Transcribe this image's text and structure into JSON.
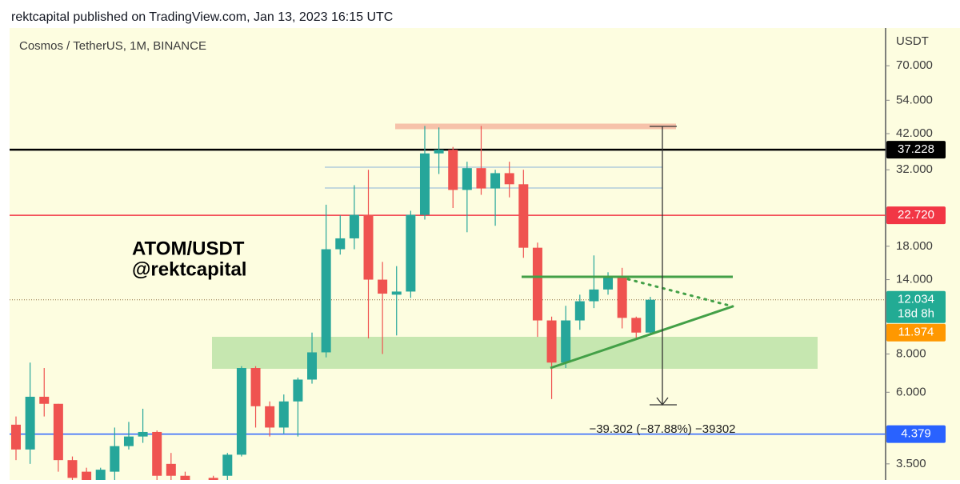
{
  "header": "rektcapital published on TradingView.com, Jan 13, 2023 16:15 UTC",
  "chart_data": {
    "type": "candlestick",
    "title": "Cosmos / TetherUS, 1M, BINANCE",
    "y_axis_label": "USDT",
    "log_scale": true,
    "ylim": [
      3.1,
      93
    ],
    "yticks": [
      {
        "value": 70,
        "label": "70.000"
      },
      {
        "value": 54,
        "label": "54.000"
      },
      {
        "value": 42,
        "label": "42.000"
      },
      {
        "value": 32,
        "label": "32.000"
      },
      {
        "value": 18,
        "label": "18.000"
      },
      {
        "value": 14,
        "label": "14.000"
      },
      {
        "value": 8,
        "label": "8.000"
      },
      {
        "value": 6,
        "label": "6.000"
      },
      {
        "value": 3.5,
        "label": "3.500"
      }
    ],
    "up_color": "#26a69a",
    "down_color": "#ef5350",
    "open": [
      4.7,
      3.9,
      5.8,
      5.5,
      3.6,
      3.3,
      3.1,
      3.3,
      4.0,
      4.3,
      4.45,
      3.5,
      3.2,
      null,
      3.15,
      3.2,
      3.75,
      7.2,
      5.4,
      4.6,
      5.6,
      6.6,
      8.1,
      17.6,
      19.1,
      22.8,
      14.0,
      12.5,
      12.8,
      22.8,
      36.2,
      37.2,
      27.5,
      32.4,
      27.8,
      31.2,
      28.7,
      17.8,
      10.3,
      7.5,
      10.3,
      11.9,
      13.0,
      14.2,
      10.5,
      9.4
    ],
    "high": [
      5.0,
      7.5,
      7.2,
      5.5,
      3.7,
      3.4,
      3.4,
      4.6,
      4.8,
      5.3,
      4.5,
      3.8,
      3.3,
      null,
      3.2,
      3.8,
      7.3,
      7.3,
      5.6,
      5.9,
      6.7,
      9.4,
      24.6,
      22.7,
      28.5,
      32.0,
      16.0,
      15.5,
      23.5,
      44.5,
      44.0,
      38.0,
      34.0,
      44.5,
      32.0,
      34.0,
      32.0,
      18.5,
      10.6,
      11.5,
      12.5,
      16.8,
      14.8,
      15.3,
      10.6,
      12.3
    ],
    "low": [
      3.6,
      3.5,
      5.0,
      3.3,
      3.1,
      3.1,
      3.1,
      3.1,
      3.9,
      4.1,
      3.1,
      3.1,
      3.1,
      null,
      3.1,
      3.1,
      3.7,
      4.6,
      4.3,
      4.4,
      4.3,
      6.4,
      7.8,
      16.9,
      17.6,
      9.0,
      8.0,
      9.2,
      12.2,
      22.0,
      31.0,
      24.0,
      20.0,
      26.5,
      21.0,
      26.0,
      16.5,
      9.1,
      5.7,
      7.2,
      9.6,
      11.3,
      12.5,
      9.7,
      8.9,
      9.3
    ],
    "close": [
      3.9,
      5.8,
      5.5,
      3.6,
      3.15,
      3.1,
      3.35,
      4.0,
      4.3,
      4.45,
      3.2,
      3.2,
      3.1,
      null,
      3.1,
      3.75,
      7.2,
      5.4,
      4.6,
      5.6,
      6.6,
      8.1,
      17.6,
      19.1,
      22.8,
      14.0,
      12.6,
      12.8,
      22.8,
      36.2,
      37.2,
      27.5,
      32.4,
      27.8,
      31.2,
      28.7,
      17.8,
      10.3,
      7.5,
      10.3,
      11.9,
      13.0,
      14.2,
      10.5,
      9.4,
      12.034
    ],
    "levels": [
      {
        "value": 37.228,
        "label": "37.228",
        "color": "#000000",
        "style": "solid"
      },
      {
        "value": 22.72,
        "label": "22.720",
        "color": "#f23645",
        "style": "solid"
      },
      {
        "value": 12.034,
        "label": "12.034",
        "sublabel": "18d 8h",
        "color": "#22ab94",
        "style": "dotted"
      },
      {
        "value": 11.974,
        "label": "11.974",
        "color": "#ff9800",
        "style": "none"
      },
      {
        "value": 4.379,
        "label": "4.379",
        "color": "#2962ff",
        "style": "solid"
      }
    ],
    "annotations": [
      "ATOM/USDT",
      "@rektcapital"
    ],
    "measure_label": "−39.302 (−87.88%) −39302"
  }
}
